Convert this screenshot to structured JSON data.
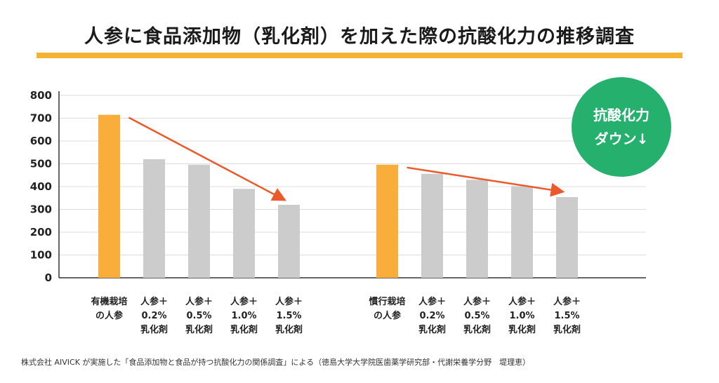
{
  "title": "人参に食品添加物（乳化剤）を加えた際の抗酸化力の推移調査",
  "badge": {
    "line1": "抗酸化力",
    "line2": "ダウン↓"
  },
  "footnote": "株式会社 AIVICK が実施した「食品添加物と食品が持つ抗酸化力の関係調査」による（徳島大学大学院医歯薬学研究部・代謝栄養学分野　堤理恵）",
  "colors": {
    "highlight": "#f9ad3a",
    "gray": "#cccccc",
    "arrow": "#ea5a2a",
    "badge": "#26b06e",
    "title_bar": "#f5b335"
  },
  "chart_data": {
    "type": "bar",
    "ylim": [
      0,
      800
    ],
    "yticks": [
      0,
      100,
      200,
      300,
      400,
      500,
      600,
      700,
      800
    ],
    "grid": true,
    "groups": [
      {
        "bars": [
          {
            "label": [
              "有機栽培",
              "の人参"
            ],
            "value": 715,
            "highlight": true
          },
          {
            "label": [
              "人参＋",
              "0.2%",
              "乳化剤"
            ],
            "value": 520,
            "highlight": false
          },
          {
            "label": [
              "人参＋",
              "0.5%",
              "乳化剤"
            ],
            "value": 496,
            "highlight": false
          },
          {
            "label": [
              "人参＋",
              "1.0%",
              "乳化剤"
            ],
            "value": 390,
            "highlight": false
          },
          {
            "label": [
              "人参＋",
              "1.5%",
              "乳化剤"
            ],
            "value": 320,
            "highlight": false
          }
        ]
      },
      {
        "bars": [
          {
            "label": [
              "慣行栽培",
              "の人参"
            ],
            "value": 496,
            "highlight": true
          },
          {
            "label": [
              "人参＋",
              "0.2%",
              "乳化剤"
            ],
            "value": 456,
            "highlight": false
          },
          {
            "label": [
              "人参＋",
              "0.5%",
              "乳化剤"
            ],
            "value": 430,
            "highlight": false
          },
          {
            "label": [
              "人参＋",
              "1.0%",
              "乳化剤"
            ],
            "value": 402,
            "highlight": false
          },
          {
            "label": [
              "人参＋",
              "1.5%",
              "乳化剤"
            ],
            "value": 354,
            "highlight": false
          }
        ]
      }
    ]
  }
}
